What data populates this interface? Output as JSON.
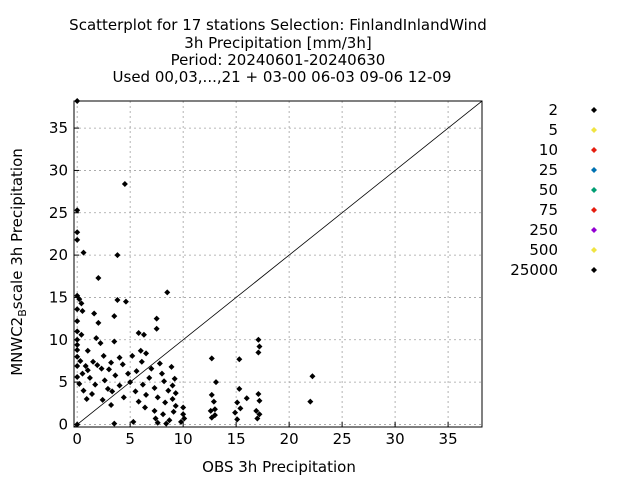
{
  "chart_data": {
    "type": "scatter",
    "title_lines": [
      "Scatterplot for   17 stations Selection: FinlandInlandWind",
      "3h Precipitation [mm/3h]",
      "Period: 20240601-20240630",
      "Used 00,03,...,21 + 03-00 06-03 09-06 12-09"
    ],
    "xlabel": "OBS 3h Precipitation",
    "ylabel_main": "MNWC2",
    "ylabel_sub": "B",
    "ylabel_rest": "scale 3h Precipitation",
    "xlim": [
      -0.3,
      38.2
    ],
    "ylim": [
      -0.3,
      38.2
    ],
    "x_ticks": [
      0,
      5,
      10,
      15,
      20,
      25,
      30,
      35
    ],
    "y_ticks": [
      0,
      5,
      10,
      15,
      20,
      25,
      30,
      35
    ],
    "grid": true,
    "diagonal": true,
    "legend_position": "right",
    "series": [
      {
        "name": "2",
        "color": "#000000",
        "points": []
      },
      {
        "name": "5",
        "color": "#f0e442",
        "points": []
      },
      {
        "name": "10",
        "color": "#e51e10",
        "points": []
      },
      {
        "name": "25",
        "color": "#0072b2",
        "points": []
      },
      {
        "name": "50",
        "color": "#009e73",
        "points": []
      },
      {
        "name": "75",
        "color": "#e51e10",
        "points": []
      },
      {
        "name": "250",
        "color": "#9400d3",
        "points": []
      },
      {
        "name": "500",
        "color": "#f0e442",
        "points": []
      },
      {
        "name": "25000",
        "color": "#000000",
        "points": [
          [
            0.0,
            38.2
          ],
          [
            4.5,
            28.4
          ],
          [
            0.0,
            25.3
          ],
          [
            0.0,
            22.7
          ],
          [
            0.0,
            21.8
          ],
          [
            0.6,
            20.3
          ],
          [
            3.8,
            20.0
          ],
          [
            2.0,
            17.3
          ],
          [
            0.0,
            15.2
          ],
          [
            0.2,
            14.8
          ],
          [
            0.4,
            14.3
          ],
          [
            3.8,
            14.7
          ],
          [
            4.6,
            14.5
          ],
          [
            8.5,
            15.6
          ],
          [
            0.0,
            13.6
          ],
          [
            0.5,
            13.4
          ],
          [
            1.6,
            13.1
          ],
          [
            3.5,
            12.8
          ],
          [
            0.0,
            12.2
          ],
          [
            2.0,
            12.0
          ],
          [
            7.5,
            12.5
          ],
          [
            0.0,
            11.0
          ],
          [
            0.4,
            10.6
          ],
          [
            5.8,
            10.8
          ],
          [
            7.5,
            11.3
          ],
          [
            0.0,
            10.0
          ],
          [
            1.8,
            10.2
          ],
          [
            6.3,
            10.6
          ],
          [
            17.1,
            10.0
          ],
          [
            0.0,
            9.4
          ],
          [
            2.2,
            9.6
          ],
          [
            3.5,
            9.8
          ],
          [
            17.2,
            9.2
          ],
          [
            0.0,
            8.8
          ],
          [
            1.0,
            8.7
          ],
          [
            6.0,
            8.7
          ],
          [
            6.5,
            8.4
          ],
          [
            17.1,
            8.5
          ],
          [
            0.0,
            8.0
          ],
          [
            2.5,
            8.1
          ],
          [
            4.0,
            7.9
          ],
          [
            5.2,
            8.1
          ],
          [
            12.7,
            7.8
          ],
          [
            15.3,
            7.7
          ],
          [
            0.3,
            7.5
          ],
          [
            1.5,
            7.4
          ],
          [
            3.2,
            7.3
          ],
          [
            7.8,
            7.2
          ],
          [
            0.0,
            6.9
          ],
          [
            0.8,
            6.9
          ],
          [
            1.9,
            7.0
          ],
          [
            4.3,
            7.1
          ],
          [
            6.1,
            7.4
          ],
          [
            8.9,
            6.8
          ],
          [
            1.0,
            6.4
          ],
          [
            2.3,
            6.6
          ],
          [
            3.0,
            6.5
          ],
          [
            5.6,
            6.3
          ],
          [
            7.0,
            6.6
          ],
          [
            0.5,
            6.0
          ],
          [
            4.8,
            6.0
          ],
          [
            8.0,
            6.0
          ],
          [
            22.2,
            5.7
          ],
          [
            0.0,
            5.6
          ],
          [
            1.2,
            5.5
          ],
          [
            3.6,
            5.8
          ],
          [
            6.8,
            5.5
          ],
          [
            9.2,
            5.4
          ],
          [
            13.1,
            5.0
          ],
          [
            2.6,
            5.2
          ],
          [
            5.0,
            5.0
          ],
          [
            8.2,
            5.1
          ],
          [
            0.2,
            4.8
          ],
          [
            1.7,
            4.7
          ],
          [
            4.0,
            4.6
          ],
          [
            6.2,
            4.7
          ],
          [
            9.0,
            4.6
          ],
          [
            2.9,
            4.2
          ],
          [
            7.3,
            4.3
          ],
          [
            15.3,
            4.2
          ],
          [
            0.6,
            4.0
          ],
          [
            3.3,
            3.9
          ],
          [
            5.5,
            3.9
          ],
          [
            8.6,
            4.0
          ],
          [
            9.3,
            3.7
          ],
          [
            1.4,
            3.6
          ],
          [
            6.5,
            3.5
          ],
          [
            12.7,
            3.5
          ],
          [
            17.1,
            3.6
          ],
          [
            4.4,
            3.2
          ],
          [
            7.6,
            3.2
          ],
          [
            0.9,
            3.0
          ],
          [
            2.4,
            2.9
          ],
          [
            9.0,
            3.0
          ],
          [
            16.0,
            3.1
          ],
          [
            5.8,
            2.7
          ],
          [
            8.3,
            2.6
          ],
          [
            12.9,
            2.7
          ],
          [
            15.1,
            2.6
          ],
          [
            17.2,
            2.8
          ],
          [
            22.0,
            2.7
          ],
          [
            3.2,
            2.3
          ],
          [
            9.3,
            2.2
          ],
          [
            10.0,
            2.0
          ],
          [
            6.4,
            2.0
          ],
          [
            13.0,
            1.8
          ],
          [
            15.4,
            1.9
          ],
          [
            7.3,
            1.6
          ],
          [
            9.1,
            1.5
          ],
          [
            12.6,
            1.6
          ],
          [
            14.9,
            1.4
          ],
          [
            16.9,
            1.6
          ],
          [
            8.1,
            1.2
          ],
          [
            10.0,
            1.2
          ],
          [
            13.0,
            1.1
          ],
          [
            17.2,
            1.2
          ],
          [
            7.4,
            0.7
          ],
          [
            8.7,
            0.5
          ],
          [
            10.1,
            0.7
          ],
          [
            12.7,
            0.8
          ],
          [
            15.1,
            0.6
          ],
          [
            17.0,
            0.7
          ],
          [
            5.3,
            0.3
          ],
          [
            7.6,
            0.2
          ],
          [
            9.8,
            0.3
          ],
          [
            0.0,
            0.0
          ],
          [
            3.5,
            0.1
          ],
          [
            8.4,
            0.1
          ]
        ]
      }
    ]
  }
}
